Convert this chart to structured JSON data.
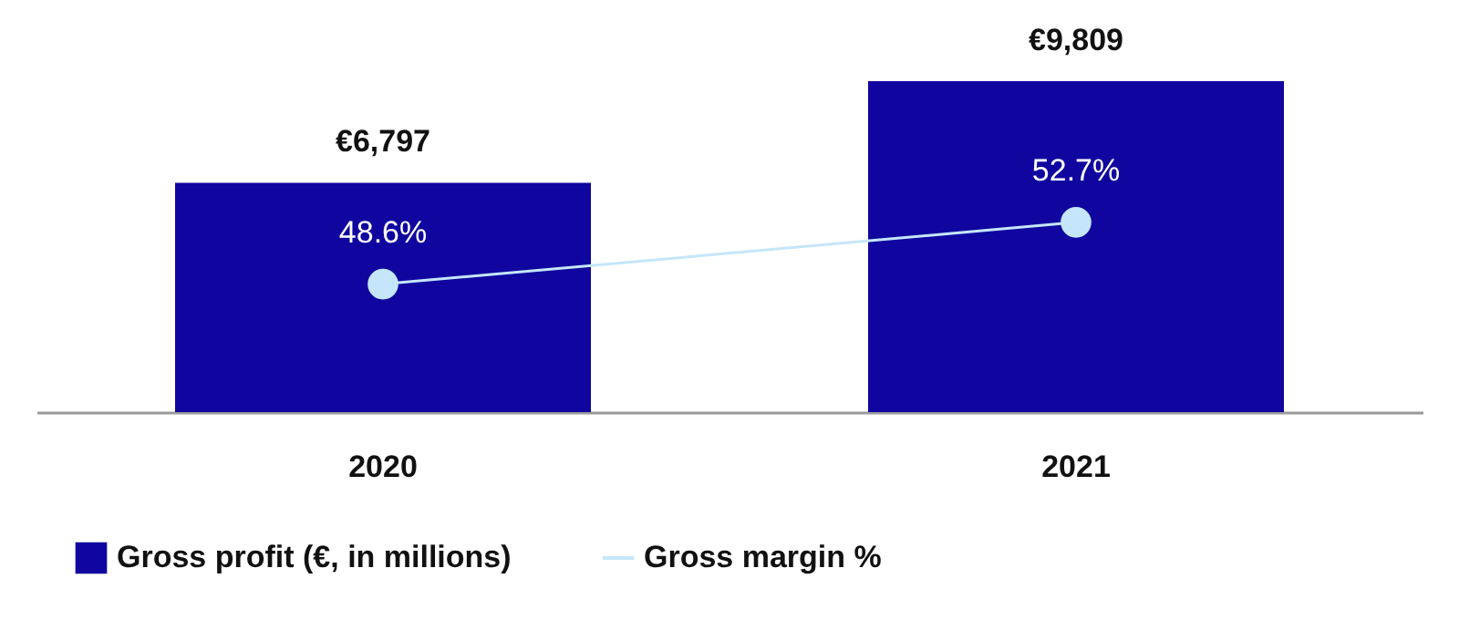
{
  "chart_data": {
    "type": "bar",
    "categories": [
      "2020",
      "2021"
    ],
    "series": [
      {
        "name": "Gross profit (€, in millions)",
        "color": "#10069f",
        "values": [
          6797,
          9809
        ],
        "value_labels": [
          "€6,797",
          "€9,809"
        ]
      },
      {
        "name": "Gross margin %",
        "type": "line",
        "axis": "y2",
        "color": "#c5e6fa",
        "values": [
          48.6,
          52.7
        ],
        "value_labels": [
          "48.6%",
          "52.7%"
        ]
      }
    ],
    "marker": "circle",
    "legend": "bottom",
    "grid": false,
    "tick_labels": "x"
  }
}
